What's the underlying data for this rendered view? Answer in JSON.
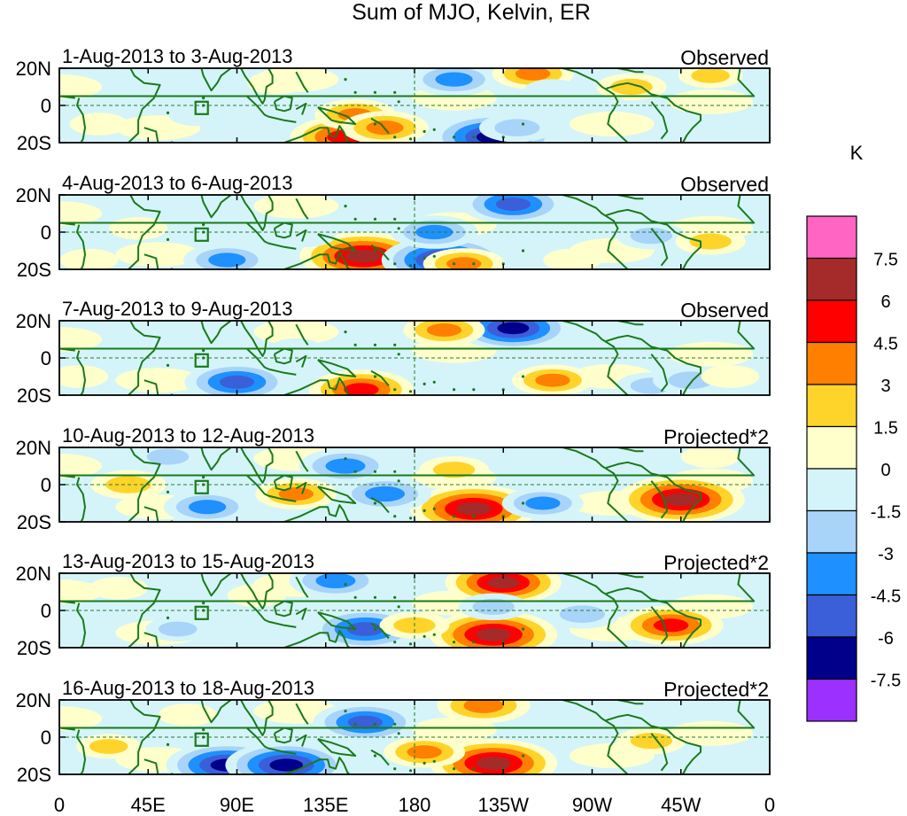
{
  "chart_data": {
    "type": "heatmap",
    "title": "Sum of MJO, Kelvin, ER",
    "colorbar": {
      "unit": "K",
      "levels": [
        "7.5",
        "6",
        "4.5",
        "3",
        "1.5",
        "0",
        "-1.5",
        "-3",
        "-4.5",
        "-6",
        "-7.5"
      ],
      "colors": [
        "#ff66c4",
        "#a52a2a",
        "#ff0000",
        "#ff7f00",
        "#ffd42a",
        "#ffffcc",
        "#d4f4fa",
        "#a8d4fa",
        "#1e90ff",
        "#3b5fd8",
        "#00008b",
        "#9b30ff"
      ]
    },
    "x_ticks": [
      "0",
      "45E",
      "90E",
      "135E",
      "180",
      "135W",
      "90W",
      "45W",
      "0"
    ],
    "y_ticks": [
      "20N",
      "0",
      "20S"
    ],
    "panels": [
      {
        "period": "1-Aug-2013 to 3-Aug-2013",
        "label": "Observed"
      },
      {
        "period": "4-Aug-2013 to 6-Aug-2013",
        "label": "Observed"
      },
      {
        "period": "7-Aug-2013 to 9-Aug-2013",
        "label": "Observed"
      },
      {
        "period": "10-Aug-2013 to 12-Aug-2013",
        "label": "Projected*2"
      },
      {
        "period": "13-Aug-2013 to 15-Aug-2013",
        "label": "Projected*2"
      },
      {
        "period": "16-Aug-2013 to 18-Aug-2013",
        "label": "Projected*2"
      }
    ],
    "anomaly_features": [
      [
        {
          "lon": 145,
          "lat": -17,
          "value": 6.5
        },
        {
          "lon": 150,
          "lat": -5,
          "value": 4
        },
        {
          "lon": 165,
          "lat": -12,
          "value": 4.5
        },
        {
          "lon": 220,
          "lat": -17,
          "value": -7.8
        },
        {
          "lon": 232,
          "lat": -12,
          "value": -3.5
        },
        {
          "lon": 200,
          "lat": 14,
          "value": -4.5
        },
        {
          "lon": 240,
          "lat": 17,
          "value": 4
        },
        {
          "lon": 290,
          "lat": 10,
          "value": 3
        },
        {
          "lon": 330,
          "lat": 16,
          "value": 2.5
        },
        {
          "lon": 70,
          "lat": -5,
          "value": -2
        },
        {
          "lon": 250,
          "lat": 8,
          "value": -2
        },
        {
          "lon": 110,
          "lat": 12,
          "value": 2
        },
        {
          "lon": 20,
          "lat": -10,
          "value": 2
        }
      ],
      [
        {
          "lon": 154,
          "lat": -13,
          "value": 8
        },
        {
          "lon": 195,
          "lat": -15,
          "value": -7.8
        },
        {
          "lon": 190,
          "lat": 0,
          "value": -4.5
        },
        {
          "lon": 85,
          "lat": -15,
          "value": -4.5
        },
        {
          "lon": 125,
          "lat": -2,
          "value": -2
        },
        {
          "lon": 230,
          "lat": 15,
          "value": -6
        },
        {
          "lon": 300,
          "lat": -2,
          "value": -3
        },
        {
          "lon": 330,
          "lat": -5,
          "value": 3
        },
        {
          "lon": 205,
          "lat": -17,
          "value": 4
        },
        {
          "lon": 40,
          "lat": 2,
          "value": 2
        },
        {
          "lon": 260,
          "lat": -15,
          "value": 2
        },
        {
          "lon": 15,
          "lat": -15,
          "value": 2
        }
      ],
      [
        {
          "lon": 153,
          "lat": -17,
          "value": 6
        },
        {
          "lon": 90,
          "lat": -13,
          "value": -6
        },
        {
          "lon": 230,
          "lat": 16,
          "value": -7
        },
        {
          "lon": 195,
          "lat": 15,
          "value": 4
        },
        {
          "lon": 250,
          "lat": -12,
          "value": 4
        },
        {
          "lon": 300,
          "lat": -15,
          "value": -3
        },
        {
          "lon": 320,
          "lat": -12,
          "value": -3.5
        },
        {
          "lon": 340,
          "lat": -10,
          "value": 2
        },
        {
          "lon": 120,
          "lat": 5,
          "value": -1.5
        },
        {
          "lon": 10,
          "lat": -10,
          "value": 2
        }
      ],
      [
        {
          "lon": 210,
          "lat": -13,
          "value": 8
        },
        {
          "lon": 315,
          "lat": -8,
          "value": 8
        },
        {
          "lon": 145,
          "lat": 10,
          "value": -5
        },
        {
          "lon": 165,
          "lat": -5,
          "value": -5
        },
        {
          "lon": 245,
          "lat": -10,
          "value": -4
        },
        {
          "lon": 75,
          "lat": -12,
          "value": -4.5
        },
        {
          "lon": 55,
          "lat": 15,
          "value": -3
        },
        {
          "lon": 200,
          "lat": 8,
          "value": 3
        },
        {
          "lon": 35,
          "lat": 0,
          "value": 3.5
        },
        {
          "lon": 120,
          "lat": -5,
          "value": 4
        },
        {
          "lon": 280,
          "lat": 15,
          "value": -2
        },
        {
          "lon": 330,
          "lat": 15,
          "value": 2
        }
      ],
      [
        {
          "lon": 220,
          "lat": -13,
          "value": 8
        },
        {
          "lon": 225,
          "lat": 15,
          "value": 7
        },
        {
          "lon": 310,
          "lat": -8,
          "value": 6
        },
        {
          "lon": 155,
          "lat": -10,
          "value": -6.5
        },
        {
          "lon": 140,
          "lat": 16,
          "value": -5
        },
        {
          "lon": 265,
          "lat": -2,
          "value": -3.5
        },
        {
          "lon": 220,
          "lat": 2,
          "value": -3
        },
        {
          "lon": 180,
          "lat": -8,
          "value": 3
        },
        {
          "lon": 60,
          "lat": -10,
          "value": -2.5
        },
        {
          "lon": 100,
          "lat": 8,
          "value": 2
        },
        {
          "lon": 30,
          "lat": 12,
          "value": 2
        }
      ],
      [
        {
          "lon": 220,
          "lat": -14,
          "value": 8
        },
        {
          "lon": 215,
          "lat": 17,
          "value": 5
        },
        {
          "lon": 85,
          "lat": -15,
          "value": -7.5
        },
        {
          "lon": 115,
          "lat": -15,
          "value": -7.5
        },
        {
          "lon": 155,
          "lat": 8,
          "value": -6
        },
        {
          "lon": 185,
          "lat": -8,
          "value": 4
        },
        {
          "lon": 300,
          "lat": -2,
          "value": 3
        },
        {
          "lon": 260,
          "lat": 8,
          "value": -2
        },
        {
          "lon": 25,
          "lat": -5,
          "value": 2.5
        },
        {
          "lon": 65,
          "lat": 12,
          "value": 2
        },
        {
          "lon": 340,
          "lat": 15,
          "value": -2
        }
      ]
    ]
  }
}
